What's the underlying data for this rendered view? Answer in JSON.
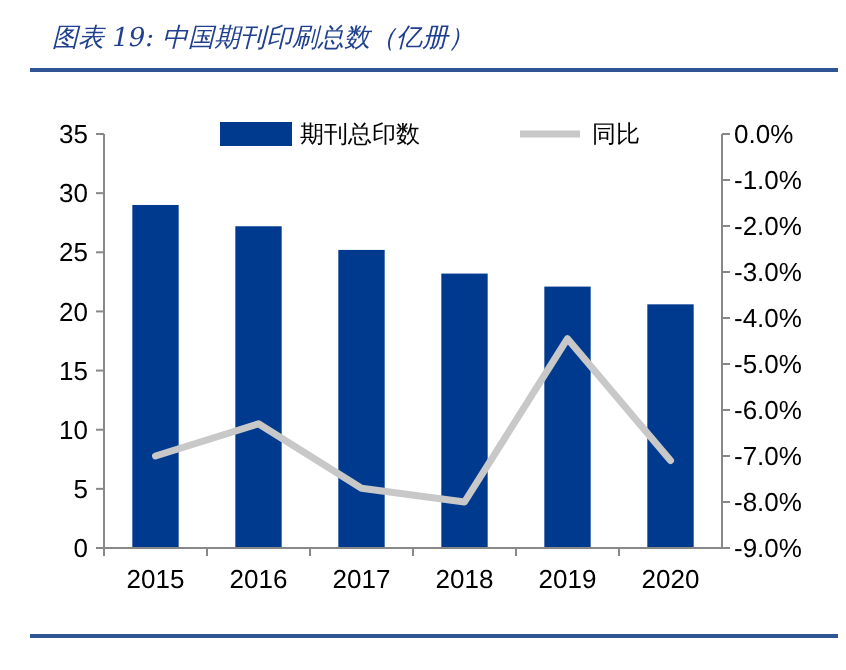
{
  "chart_data": {
    "type": "bar",
    "title": "图表 19:  中国期刊印刷总数（亿册）",
    "categories": [
      "2015",
      "2016",
      "2017",
      "2018",
      "2019",
      "2020"
    ],
    "series": [
      {
        "name": "期刊总印数",
        "color": "#003a8f",
        "values": [
          29.0,
          27.2,
          25.2,
          23.2,
          22.1,
          20.6
        ]
      },
      {
        "name": "同比",
        "type": "line",
        "axis": "y2",
        "color": "#c8c8c8",
        "values": [
          -7.0,
          -6.3,
          -7.7,
          -8.0,
          -4.45,
          -7.1
        ]
      }
    ],
    "ylim": [
      0,
      35
    ],
    "yticks": [
      0,
      5,
      10,
      15,
      20,
      25,
      30,
      35
    ],
    "y2lim": [
      -9,
      0
    ],
    "y2ticks": [
      {
        "value": -9,
        "label": "-9.0%"
      },
      {
        "value": -8,
        "label": "-8.0%"
      },
      {
        "value": -7,
        "label": "-7.0%"
      },
      {
        "value": -6,
        "label": "-6.0%"
      },
      {
        "value": -5,
        "label": "-5.0%"
      },
      {
        "value": -4,
        "label": "-4.0%"
      },
      {
        "value": -3,
        "label": "-3.0%"
      },
      {
        "value": -2,
        "label": "-2.0%"
      },
      {
        "value": -1,
        "label": "-1.0%"
      },
      {
        "value": 0,
        "label": "0.0%"
      }
    ],
    "legend": "top",
    "grid": false
  }
}
